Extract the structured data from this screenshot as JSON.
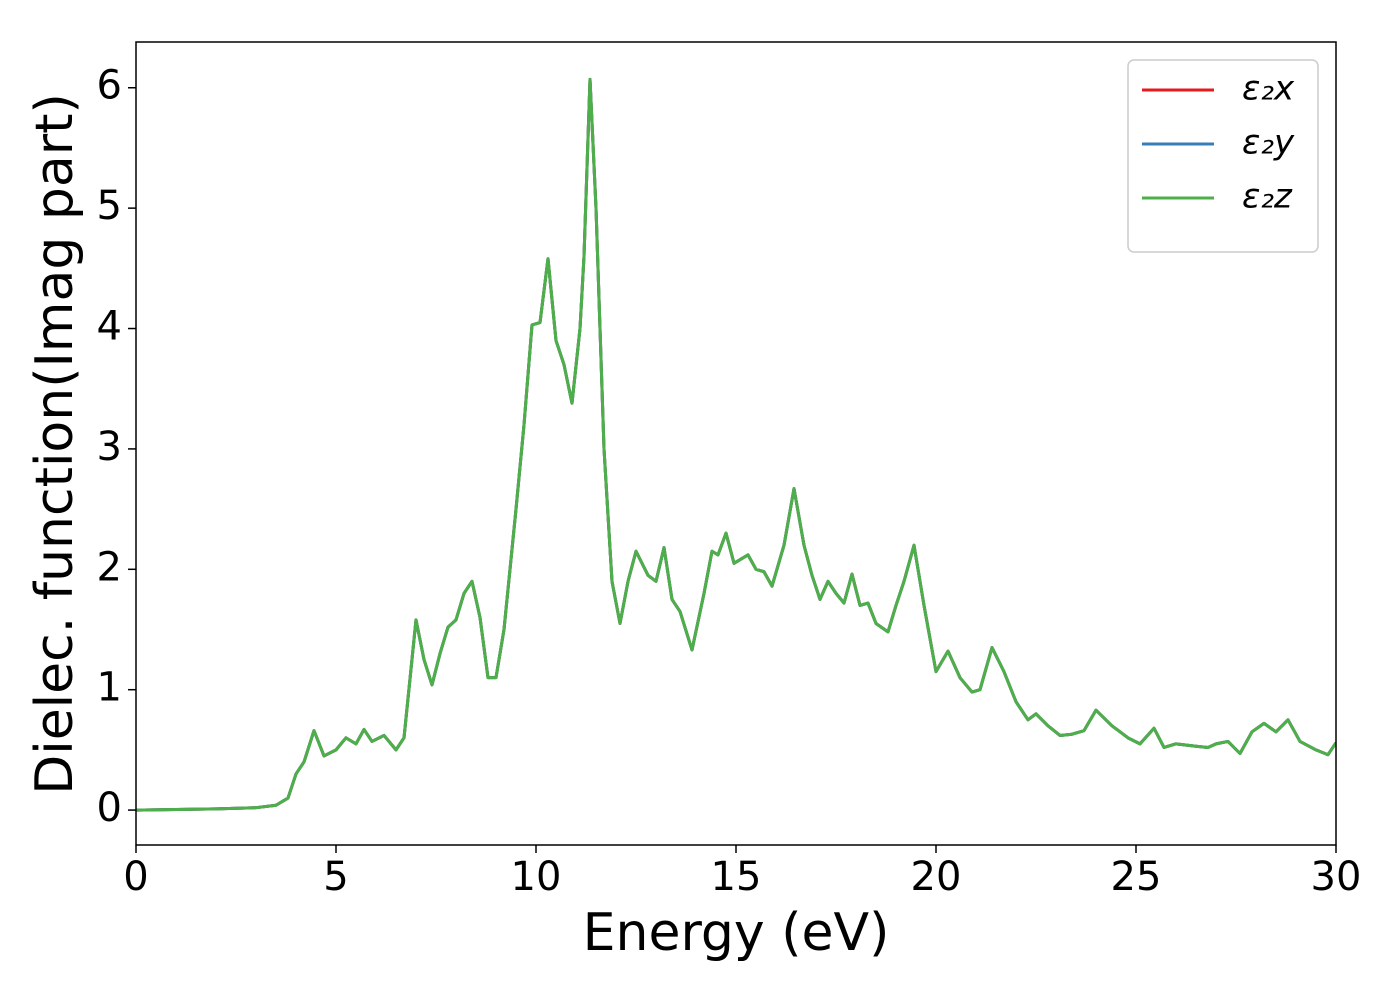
{
  "chart_data": {
    "type": "line",
    "xlabel": "Energy (eV)",
    "ylabel": "Dielec. function(Imag part)",
    "x": [
      0,
      1,
      2,
      3,
      3.5,
      3.8,
      4.0,
      4.2,
      4.45,
      4.7,
      5.0,
      5.25,
      5.5,
      5.7,
      5.9,
      6.2,
      6.5,
      6.7,
      7.0,
      7.2,
      7.4,
      7.6,
      7.8,
      8.0,
      8.2,
      8.4,
      8.6,
      8.8,
      9.0,
      9.2,
      9.5,
      9.7,
      9.9,
      10.1,
      10.3,
      10.5,
      10.7,
      10.9,
      11.1,
      11.2,
      11.35,
      11.5,
      11.7,
      11.9,
      12.1,
      12.3,
      12.5,
      12.8,
      13.0,
      13.2,
      13.4,
      13.6,
      13.9,
      14.2,
      14.4,
      14.55,
      14.75,
      14.95,
      15.1,
      15.3,
      15.5,
      15.7,
      15.9,
      16.2,
      16.45,
      16.7,
      16.9,
      17.1,
      17.3,
      17.5,
      17.7,
      17.9,
      18.1,
      18.3,
      18.5,
      18.8,
      19.0,
      19.2,
      19.45,
      19.7,
      20.0,
      20.3,
      20.6,
      20.9,
      21.1,
      21.4,
      21.7,
      22.0,
      22.3,
      22.5,
      22.8,
      23.1,
      23.4,
      23.7,
      24.0,
      24.4,
      24.8,
      25.1,
      25.45,
      25.7,
      26.0,
      26.5,
      26.8,
      27.0,
      27.3,
      27.6,
      27.9,
      28.2,
      28.5,
      28.8,
      29.1,
      29.5,
      29.8,
      30.0
    ],
    "series": [
      {
        "name": "ε₂x",
        "color": "#e41a1c",
        "values": [
          0.0,
          0.005,
          0.01,
          0.02,
          0.04,
          0.1,
          0.3,
          0.4,
          0.66,
          0.45,
          0.5,
          0.6,
          0.55,
          0.67,
          0.57,
          0.62,
          0.5,
          0.6,
          1.58,
          1.25,
          1.04,
          1.3,
          1.52,
          1.58,
          1.8,
          1.9,
          1.6,
          1.1,
          1.1,
          1.5,
          2.5,
          3.2,
          4.03,
          4.05,
          4.58,
          3.9,
          3.7,
          3.38,
          4.0,
          4.6,
          6.07,
          5.0,
          3.0,
          1.9,
          1.55,
          1.9,
          2.15,
          1.95,
          1.9,
          2.18,
          1.75,
          1.65,
          1.33,
          1.8,
          2.15,
          2.12,
          2.3,
          2.05,
          2.08,
          2.12,
          2.0,
          1.98,
          1.86,
          2.2,
          2.67,
          2.2,
          1.95,
          1.75,
          1.9,
          1.8,
          1.72,
          1.96,
          1.7,
          1.72,
          1.55,
          1.48,
          1.7,
          1.9,
          2.2,
          1.7,
          1.15,
          1.32,
          1.1,
          0.98,
          1.0,
          1.35,
          1.15,
          0.9,
          0.75,
          0.8,
          0.7,
          0.62,
          0.63,
          0.66,
          0.83,
          0.7,
          0.6,
          0.55,
          0.68,
          0.52,
          0.55,
          0.53,
          0.52,
          0.55,
          0.57,
          0.47,
          0.65,
          0.72,
          0.65,
          0.75,
          0.57,
          0.5,
          0.46,
          0.56
        ]
      },
      {
        "name": "ε₂y",
        "color": "#377eb8",
        "values": [
          0.0,
          0.005,
          0.01,
          0.02,
          0.04,
          0.1,
          0.3,
          0.4,
          0.66,
          0.45,
          0.5,
          0.6,
          0.55,
          0.67,
          0.57,
          0.62,
          0.5,
          0.6,
          1.58,
          1.25,
          1.04,
          1.3,
          1.52,
          1.58,
          1.8,
          1.9,
          1.6,
          1.1,
          1.1,
          1.5,
          2.5,
          3.2,
          4.03,
          4.05,
          4.58,
          3.9,
          3.7,
          3.38,
          4.0,
          4.6,
          6.07,
          5.0,
          3.0,
          1.9,
          1.55,
          1.9,
          2.15,
          1.95,
          1.9,
          2.18,
          1.75,
          1.65,
          1.33,
          1.8,
          2.15,
          2.12,
          2.3,
          2.05,
          2.08,
          2.12,
          2.0,
          1.98,
          1.86,
          2.2,
          2.67,
          2.2,
          1.95,
          1.75,
          1.9,
          1.8,
          1.72,
          1.96,
          1.7,
          1.72,
          1.55,
          1.48,
          1.7,
          1.9,
          2.2,
          1.7,
          1.15,
          1.32,
          1.1,
          0.98,
          1.0,
          1.35,
          1.15,
          0.9,
          0.75,
          0.8,
          0.7,
          0.62,
          0.63,
          0.66,
          0.83,
          0.7,
          0.6,
          0.55,
          0.68,
          0.52,
          0.55,
          0.53,
          0.52,
          0.55,
          0.57,
          0.47,
          0.65,
          0.72,
          0.65,
          0.75,
          0.57,
          0.5,
          0.46,
          0.56
        ]
      },
      {
        "name": "ε₂z",
        "color": "#4daf4a",
        "values": [
          0.0,
          0.005,
          0.01,
          0.02,
          0.04,
          0.1,
          0.3,
          0.4,
          0.66,
          0.45,
          0.5,
          0.6,
          0.55,
          0.67,
          0.57,
          0.62,
          0.5,
          0.6,
          1.58,
          1.25,
          1.04,
          1.3,
          1.52,
          1.58,
          1.8,
          1.9,
          1.6,
          1.1,
          1.1,
          1.5,
          2.5,
          3.2,
          4.03,
          4.05,
          4.58,
          3.9,
          3.7,
          3.38,
          4.0,
          4.6,
          6.07,
          5.0,
          3.0,
          1.9,
          1.55,
          1.9,
          2.15,
          1.95,
          1.9,
          2.18,
          1.75,
          1.65,
          1.33,
          1.8,
          2.15,
          2.12,
          2.3,
          2.05,
          2.08,
          2.12,
          2.0,
          1.98,
          1.86,
          2.2,
          2.67,
          2.2,
          1.95,
          1.75,
          1.9,
          1.8,
          1.72,
          1.96,
          1.7,
          1.72,
          1.55,
          1.48,
          1.7,
          1.9,
          2.2,
          1.7,
          1.15,
          1.32,
          1.1,
          0.98,
          1.0,
          1.35,
          1.15,
          0.9,
          0.75,
          0.8,
          0.7,
          0.62,
          0.63,
          0.66,
          0.83,
          0.7,
          0.6,
          0.55,
          0.68,
          0.52,
          0.55,
          0.53,
          0.52,
          0.55,
          0.57,
          0.47,
          0.65,
          0.72,
          0.65,
          0.75,
          0.57,
          0.5,
          0.46,
          0.56
        ]
      }
    ],
    "xlim": [
      0,
      30
    ],
    "xticks": [
      0,
      5,
      10,
      15,
      20,
      25,
      30
    ],
    "ylim": [
      -0.29,
      6.38
    ],
    "yticks": [
      0,
      1,
      2,
      3,
      4,
      5,
      6
    ],
    "legend": "upper right",
    "grid": false
  }
}
